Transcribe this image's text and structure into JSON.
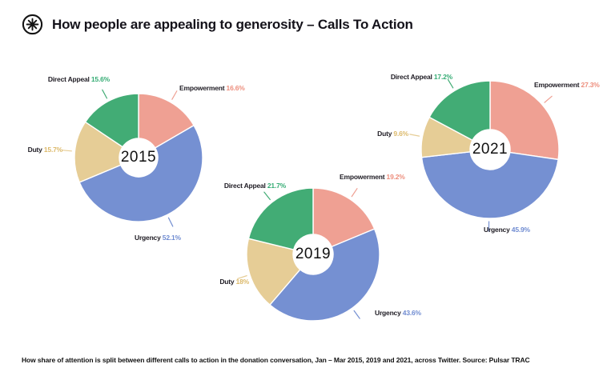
{
  "header": {
    "title": "How people are appealing to generosity – Calls To Action",
    "logo": "asterisk-burst-icon"
  },
  "footer": {
    "caption": "How share of attention is split between different calls to action in the donation conversation, Jan – Mar 2015, 2019 and 2021, across Twitter. Source: Pulsar TRAC"
  },
  "category_colors": {
    "Empowerment": {
      "fill": "#EFA093",
      "text": "#ED8E7D"
    },
    "Urgency": {
      "fill": "#7590D2",
      "text": "#6F8BD1"
    },
    "Duty": {
      "fill": "#E6CD96",
      "text": "#DCB96A"
    },
    "Direct Appeal": {
      "fill": "#42AC75",
      "text": "#35AC74"
    }
  },
  "chart_data": [
    {
      "type": "pie",
      "title": "2015",
      "legend_position": "outside-callouts",
      "start_angle": "top-clockwise",
      "slices": [
        {
          "label": "Empowerment",
          "value": 16.6,
          "pct_text": "16.6%"
        },
        {
          "label": "Urgency",
          "value": 52.1,
          "pct_text": "52.1%"
        },
        {
          "label": "Duty",
          "value": 15.7,
          "pct_text": "15.7%"
        },
        {
          "label": "Direct Appeal",
          "value": 15.6,
          "pct_text": "15.6%"
        }
      ]
    },
    {
      "type": "pie",
      "title": "2019",
      "legend_position": "outside-callouts",
      "start_angle": "top-clockwise",
      "slices": [
        {
          "label": "Empowerment",
          "value": 19.2,
          "pct_text": "19.2%"
        },
        {
          "label": "Urgency",
          "value": 43.6,
          "pct_text": "43.6%"
        },
        {
          "label": "Duty",
          "value": 18.0,
          "pct_text": "18%"
        },
        {
          "label": "Direct Appeal",
          "value": 21.7,
          "pct_text": "21.7%"
        }
      ]
    },
    {
      "type": "pie",
      "title": "2021",
      "legend_position": "outside-callouts",
      "start_angle": "top-clockwise",
      "slices": [
        {
          "label": "Empowerment",
          "value": 27.3,
          "pct_text": "27.3%"
        },
        {
          "label": "Urgency",
          "value": 45.9,
          "pct_text": "45.9%"
        },
        {
          "label": "Duty",
          "value": 9.6,
          "pct_text": "9.6%"
        },
        {
          "label": "Direct Appeal",
          "value": 17.2,
          "pct_text": "17.2%"
        }
      ]
    }
  ]
}
